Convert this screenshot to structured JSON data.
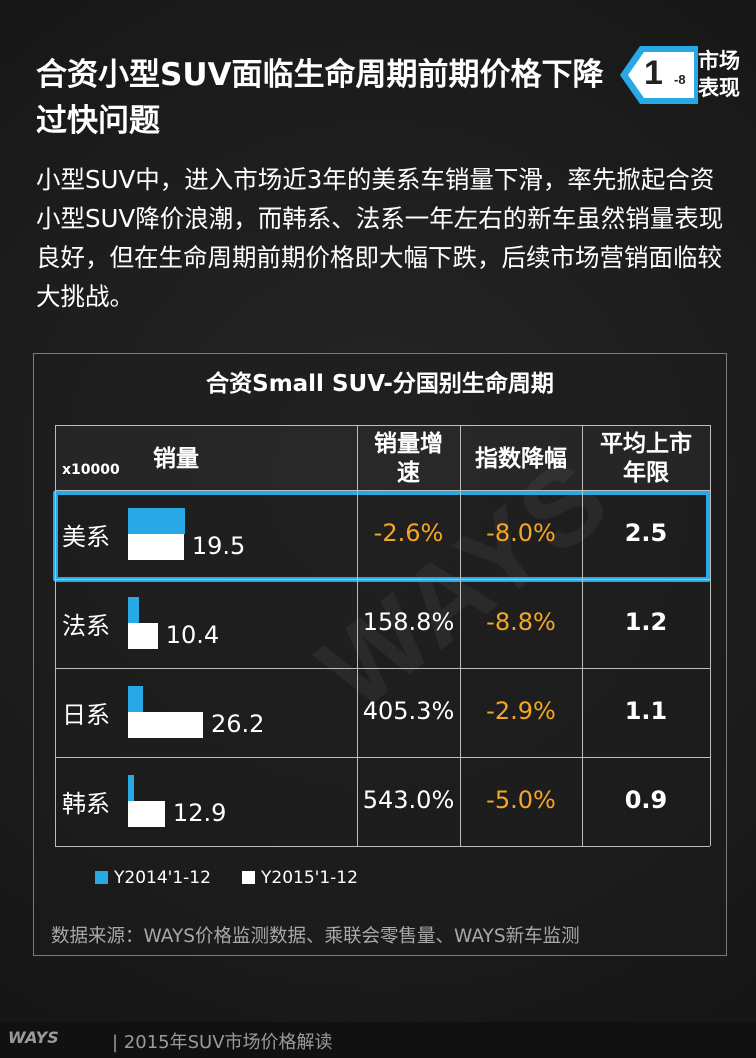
{
  "header": {
    "title": "合资小型SUV面临生命周期前期价格下降过快问题",
    "tag_number": "1",
    "tag_sub": "-8",
    "tag_label": "市场表现"
  },
  "intro": "小型SUV中，进入市场近3年的美系车销量下滑，率先掀起合资小型SUV降价浪潮，而韩系、法系一年左右的新车虽然销量表现良好，但在生命周期前期价格即大幅下跌，后续市场营销面临较大挑战。",
  "chart_data": {
    "type": "table",
    "title": "合资Small SUV-分国别生命周期",
    "unit": "x10000",
    "columns": [
      "销量",
      "销量增速",
      "指数降幅",
      "平均上市年限"
    ],
    "series": [
      {
        "name": "Y2014'1-12",
        "color": "#29a8e6"
      },
      {
        "name": "Y2015'1-12",
        "color": "#ffffff"
      }
    ],
    "rows": [
      {
        "region": "美系",
        "sales_2014": 20.0,
        "sales_2015": 19.5,
        "sales_label": "19.5",
        "growth": "-2.6%",
        "index_drop": "-8.0%",
        "avg_years": "2.5",
        "highlighted": true
      },
      {
        "region": "法系",
        "sales_2014": 4.0,
        "sales_2015": 10.4,
        "sales_label": "10.4",
        "growth": "158.8%",
        "index_drop": "-8.8%",
        "avg_years": "1.2",
        "highlighted": false
      },
      {
        "region": "日系",
        "sales_2014": 5.2,
        "sales_2015": 26.2,
        "sales_label": "26.2",
        "growth": "405.3%",
        "index_drop": "-2.9%",
        "avg_years": "1.1",
        "highlighted": false
      },
      {
        "region": "韩系",
        "sales_2014": 2.0,
        "sales_2015": 12.9,
        "sales_label": "12.9",
        "growth": "543.0%",
        "index_drop": "-5.0%",
        "avg_years": "0.9",
        "highlighted": false
      }
    ],
    "source": "数据来源：WAYS价格监测数据、乘联会零售量、WAYS新车监测"
  },
  "watermark": "WAYS",
  "footer": {
    "logo": "WAYS",
    "text": "|   2015年SUV市场价格解读"
  },
  "colors": {
    "accent": "#29a8e6",
    "orange": "#f5a623",
    "background": "#1c1c1c"
  }
}
